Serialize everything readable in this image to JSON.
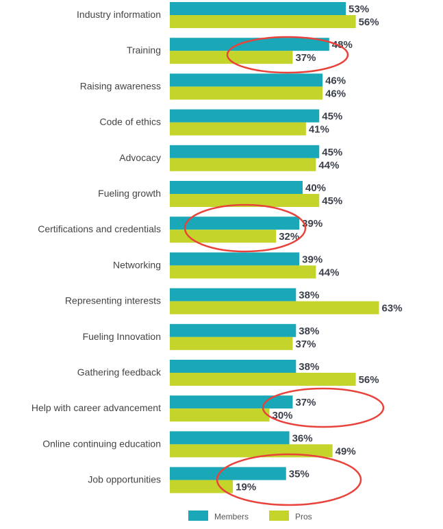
{
  "chart_data": {
    "type": "bar",
    "orientation": "horizontal",
    "title": "",
    "xlabel": "",
    "ylabel": "",
    "xlim": [
      0,
      65
    ],
    "grid": false,
    "legend_position": "bottom",
    "categories": [
      "Industry information",
      "Training",
      "Raising awareness",
      "Code of ethics",
      "Advocacy",
      "Fueling growth",
      "Certifications and credentials",
      "Networking",
      "Representing interests",
      "Fueling Innovation",
      "Gathering feedback",
      "Help with career advancement",
      "Online continuing education",
      "Job opportunities"
    ],
    "series": [
      {
        "name": "Members",
        "color": "#1aa8b8",
        "values": [
          53,
          48,
          46,
          45,
          45,
          40,
          39,
          39,
          38,
          38,
          38,
          37,
          36,
          35
        ]
      },
      {
        "name": "Pros",
        "color": "#c5d42a",
        "values": [
          56,
          37,
          46,
          41,
          44,
          45,
          32,
          44,
          63,
          37,
          56,
          30,
          49,
          19
        ]
      }
    ],
    "value_suffix": "%",
    "highlighted_categories": [
      "Training",
      "Certifications and credentials",
      "Help with career advancement",
      "Job opportunities"
    ],
    "highlight_color": "#e8423a"
  }
}
